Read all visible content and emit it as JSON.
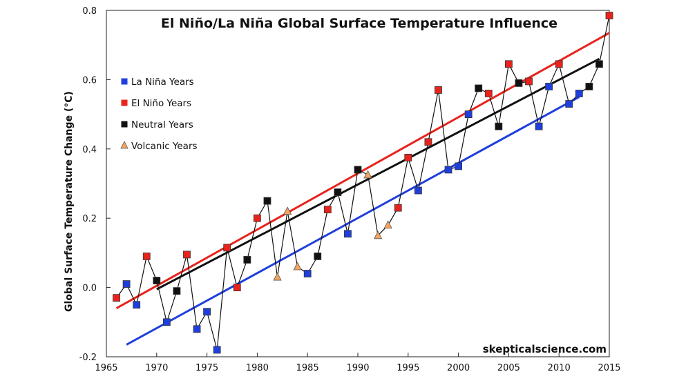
{
  "chart_data": {
    "type": "scatter",
    "title": "El Niño/La Niña Global Surface Temperature Influence",
    "xlabel": "",
    "ylabel": "Global Surface Temperature Change (°C)",
    "xlim": [
      1965,
      2015
    ],
    "ylim": [
      -0.2,
      0.8
    ],
    "xticks": [
      "1965",
      "1970",
      "1975",
      "1980",
      "1985",
      "1990",
      "1995",
      "2000",
      "2005",
      "2010",
      "2015"
    ],
    "yticks": [
      "-0.2",
      "0.0",
      "0.2",
      "0.4",
      "0.6",
      "0.8"
    ],
    "grid": false,
    "legend_position": "top-left",
    "watermark": "skepticalscience.com",
    "colors": {
      "la_nina": "#1f3fdc",
      "el_nino": "#e8231c",
      "neutral": "#111111",
      "volcanic": "#f4a460",
      "connector": "#111111"
    },
    "legend": [
      {
        "key": "la_nina",
        "label": "La Niña Years",
        "marker": "square"
      },
      {
        "key": "el_nino",
        "label": "El Niño Years",
        "marker": "square"
      },
      {
        "key": "neutral",
        "label": "Neutral Years",
        "marker": "square"
      },
      {
        "key": "volcanic",
        "label": "Volcanic Years",
        "marker": "triangle"
      }
    ],
    "points": [
      {
        "year": 1966,
        "value": -0.03,
        "type": "el_nino"
      },
      {
        "year": 1967,
        "value": 0.01,
        "type": "la_nina"
      },
      {
        "year": 1968,
        "value": -0.05,
        "type": "la_nina"
      },
      {
        "year": 1969,
        "value": 0.09,
        "type": "el_nino"
      },
      {
        "year": 1970,
        "value": 0.02,
        "type": "neutral"
      },
      {
        "year": 1971,
        "value": -0.1,
        "type": "la_nina"
      },
      {
        "year": 1972,
        "value": -0.01,
        "type": "neutral"
      },
      {
        "year": 1973,
        "value": 0.095,
        "type": "el_nino"
      },
      {
        "year": 1974,
        "value": -0.12,
        "type": "la_nina"
      },
      {
        "year": 1975,
        "value": -0.07,
        "type": "la_nina"
      },
      {
        "year": 1976,
        "value": -0.18,
        "type": "la_nina"
      },
      {
        "year": 1977,
        "value": 0.115,
        "type": "el_nino"
      },
      {
        "year": 1978,
        "value": 0.0,
        "type": "el_nino"
      },
      {
        "year": 1979,
        "value": 0.08,
        "type": "neutral"
      },
      {
        "year": 1980,
        "value": 0.2,
        "type": "el_nino"
      },
      {
        "year": 1981,
        "value": 0.25,
        "type": "neutral"
      },
      {
        "year": 1982,
        "value": 0.03,
        "type": "volcanic"
      },
      {
        "year": 1983,
        "value": 0.22,
        "type": "volcanic"
      },
      {
        "year": 1984,
        "value": 0.06,
        "type": "volcanic"
      },
      {
        "year": 1985,
        "value": 0.04,
        "type": "la_nina"
      },
      {
        "year": 1986,
        "value": 0.09,
        "type": "neutral"
      },
      {
        "year": 1987,
        "value": 0.225,
        "type": "el_nino"
      },
      {
        "year": 1988,
        "value": 0.275,
        "type": "neutral"
      },
      {
        "year": 1989,
        "value": 0.155,
        "type": "la_nina"
      },
      {
        "year": 1990,
        "value": 0.34,
        "type": "neutral"
      },
      {
        "year": 1991,
        "value": 0.325,
        "type": "volcanic"
      },
      {
        "year": 1992,
        "value": 0.15,
        "type": "volcanic"
      },
      {
        "year": 1993,
        "value": 0.18,
        "type": "volcanic"
      },
      {
        "year": 1994,
        "value": 0.23,
        "type": "el_nino"
      },
      {
        "year": 1995,
        "value": 0.375,
        "type": "el_nino"
      },
      {
        "year": 1996,
        "value": 0.28,
        "type": "la_nina"
      },
      {
        "year": 1997,
        "value": 0.42,
        "type": "el_nino"
      },
      {
        "year": 1998,
        "value": 0.57,
        "type": "el_nino"
      },
      {
        "year": 1999,
        "value": 0.34,
        "type": "la_nina"
      },
      {
        "year": 2000,
        "value": 0.35,
        "type": "la_nina"
      },
      {
        "year": 2001,
        "value": 0.5,
        "type": "la_nina"
      },
      {
        "year": 2002,
        "value": 0.575,
        "type": "neutral"
      },
      {
        "year": 2003,
        "value": 0.56,
        "type": "el_nino"
      },
      {
        "year": 2004,
        "value": 0.465,
        "type": "neutral"
      },
      {
        "year": 2005,
        "value": 0.645,
        "type": "el_nino"
      },
      {
        "year": 2006,
        "value": 0.59,
        "type": "neutral"
      },
      {
        "year": 2007,
        "value": 0.595,
        "type": "el_nino"
      },
      {
        "year": 2008,
        "value": 0.465,
        "type": "la_nina"
      },
      {
        "year": 2009,
        "value": 0.58,
        "type": "la_nina"
      },
      {
        "year": 2010,
        "value": 0.645,
        "type": "el_nino"
      },
      {
        "year": 2011,
        "value": 0.53,
        "type": "la_nina"
      },
      {
        "year": 2012,
        "value": 0.56,
        "type": "la_nina"
      },
      {
        "year": 2013,
        "value": 0.58,
        "type": "neutral"
      },
      {
        "year": 2014,
        "value": 0.645,
        "type": "neutral"
      },
      {
        "year": 2015,
        "value": 0.785,
        "type": "el_nino"
      }
    ],
    "trend_lines": [
      {
        "key": "el_nino",
        "x": [
          1966,
          2015
        ],
        "y": [
          -0.06,
          0.735
        ]
      },
      {
        "key": "neutral",
        "x": [
          1970,
          2014
        ],
        "y": [
          -0.005,
          0.66
        ]
      },
      {
        "key": "la_nina",
        "x": [
          1967,
          2012
        ],
        "y": [
          -0.165,
          0.55
        ]
      }
    ]
  }
}
